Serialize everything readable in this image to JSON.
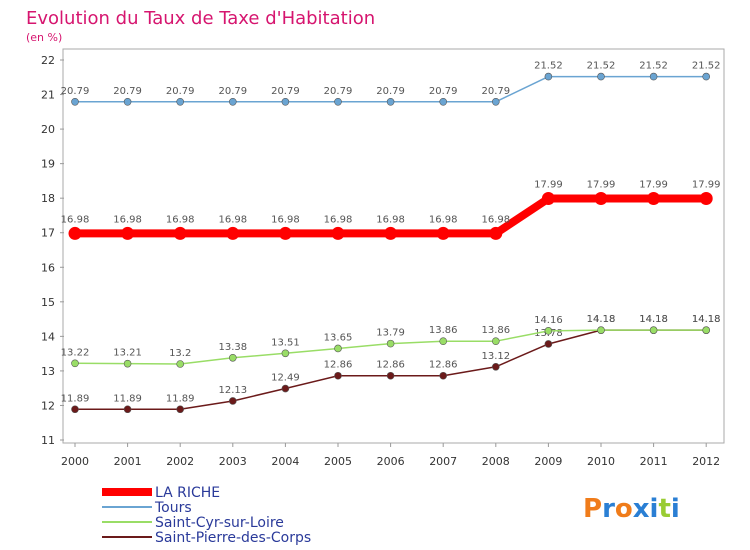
{
  "chart_data": {
    "type": "line",
    "title": "Evolution du Taux de Taxe d'Habitation",
    "subtitle": "(en %)",
    "xlabel": "",
    "ylabel": "",
    "categories": [
      "2000",
      "2001",
      "2002",
      "2003",
      "2004",
      "2005",
      "2006",
      "2007",
      "2008",
      "2009",
      "2010",
      "2011",
      "2012"
    ],
    "ylim": [
      11,
      22
    ],
    "yticks": [
      11,
      12,
      13,
      14,
      15,
      16,
      17,
      18,
      19,
      20,
      21,
      22
    ],
    "grid": false,
    "legend_position": "bottom-left",
    "series": [
      {
        "name": "LA RICHE",
        "color": "#ff0000",
        "values": [
          16.98,
          16.98,
          16.98,
          16.98,
          16.98,
          16.98,
          16.98,
          16.98,
          16.98,
          17.99,
          17.99,
          17.99,
          17.99
        ],
        "labels": [
          "16.98",
          "16.98",
          "16.98",
          "16.98",
          "16.98",
          "16.98",
          "16.98",
          "16.98",
          "16.98",
          "17.99",
          "17.99",
          "17.99",
          "17.99"
        ]
      },
      {
        "name": "Tours",
        "color": "#6aa4d2",
        "values": [
          20.79,
          20.79,
          20.79,
          20.79,
          20.79,
          20.79,
          20.79,
          20.79,
          20.79,
          21.52,
          21.52,
          21.52,
          21.52
        ],
        "labels": [
          "20.79",
          "20.79",
          "20.79",
          "20.79",
          "20.79",
          "20.79",
          "20.79",
          "20.79",
          "20.79",
          "21.52",
          "21.52",
          "21.52",
          "21.52"
        ]
      },
      {
        "name": "Saint-Cyr-sur-Loire",
        "color": "#99dd66",
        "values": [
          13.22,
          13.21,
          13.2,
          13.38,
          13.51,
          13.65,
          13.79,
          13.86,
          13.86,
          14.16,
          14.18,
          14.18,
          14.18
        ],
        "labels": [
          "13.22",
          "13.21",
          "13.2",
          "13.38",
          "13.51",
          "13.65",
          "13.79",
          "13.86",
          "13.86",
          "14.16",
          "14.18",
          "14.18",
          "14.18"
        ]
      },
      {
        "name": "Saint-Pierre-des-Corps",
        "color": "#6b1a1a",
        "values": [
          11.89,
          11.89,
          11.89,
          12.13,
          12.49,
          12.86,
          12.86,
          12.86,
          13.12,
          13.78,
          14.18,
          14.18,
          14.18
        ],
        "labels": [
          "11.89",
          "11.89",
          "11.89",
          "12.13",
          "12.49",
          "12.86",
          "12.86",
          "12.86",
          "13.12",
          "13.78",
          "14.18",
          "14.18",
          "14.18"
        ]
      }
    ]
  },
  "logo": {
    "text": "Proxiti",
    "letter_colors": [
      "#f07c1a",
      "#2a7fd4",
      "#f07c1a",
      "#2a7fd4",
      "#2a7fd4",
      "#99cc33",
      "#2a7fd4"
    ]
  }
}
